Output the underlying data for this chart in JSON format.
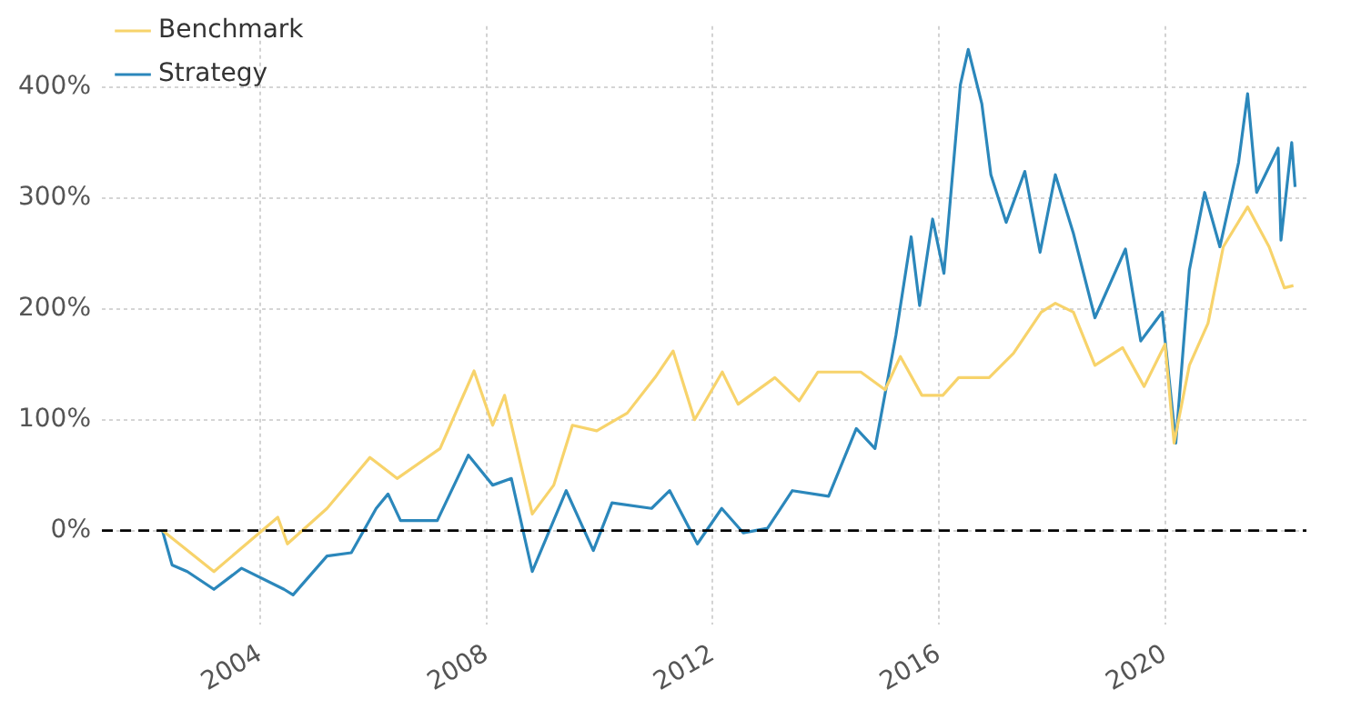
{
  "chart_data": {
    "type": "line",
    "xlim": [
      2001.2,
      2022.5
    ],
    "xticks": [
      2004,
      2008,
      2012,
      2016,
      2020
    ],
    "ylim": [
      -85,
      455
    ],
    "yticks": [
      {
        "value": 0,
        "label": "0%"
      },
      {
        "value": 100,
        "label": "100%"
      },
      {
        "value": 200,
        "label": "200%"
      },
      {
        "value": 300,
        "label": "300%"
      },
      {
        "value": 400,
        "label": "400%"
      }
    ],
    "grid": true,
    "legend": "top left",
    "marker": "none",
    "line_style": "solid",
    "ref_lines": [
      {
        "axis": "y",
        "value": 0,
        "color": "#000000",
        "line_style": "dashed"
      }
    ],
    "series": [
      {
        "name": "Benchmark",
        "color": "#f7d36b",
        "x": [
          2002.27,
          2003.18,
          2004.31,
          2004.48,
          2005.18,
          2005.94,
          2006.42,
          2007.18,
          2007.78,
          2008.11,
          2008.32,
          2008.81,
          2009.19,
          2009.52,
          2009.95,
          2010.49,
          2010.98,
          2011.3,
          2011.68,
          2012.17,
          2012.45,
          2013.1,
          2013.53,
          2013.86,
          2014.62,
          2015.05,
          2015.32,
          2015.7,
          2016.07,
          2016.35,
          2016.89,
          2017.32,
          2017.81,
          2018.06,
          2018.38,
          2018.76,
          2019.25,
          2019.63,
          2020.0,
          2020.16,
          2020.43,
          2020.76,
          2021.03,
          2021.46,
          2021.84,
          2022.11,
          2022.27
        ],
        "values": [
          0,
          -37,
          12,
          -12,
          20,
          66,
          47,
          74,
          144,
          95,
          122,
          15,
          41,
          95,
          90,
          106,
          138,
          162,
          100,
          143,
          114,
          138,
          117,
          143,
          143,
          127,
          157,
          122,
          122,
          138,
          138,
          160,
          197,
          205,
          197,
          149,
          165,
          130,
          168,
          79,
          149,
          187,
          256,
          292,
          256,
          219,
          221
        ]
      },
      {
        "name": "Strategy",
        "color": "#2b87bb",
        "x": [
          2002.27,
          2002.44,
          2002.71,
          2003.18,
          2003.67,
          2004.42,
          2004.58,
          2005.18,
          2005.61,
          2006.05,
          2006.26,
          2006.48,
          2007.13,
          2007.68,
          2008.11,
          2008.44,
          2008.81,
          2009.41,
          2009.89,
          2010.22,
          2010.92,
          2011.24,
          2011.73,
          2012.16,
          2012.54,
          2012.97,
          2013.41,
          2014.05,
          2014.54,
          2014.87,
          2015.24,
          2015.51,
          2015.66,
          2015.89,
          2016.09,
          2016.38,
          2016.52,
          2016.76,
          2016.92,
          2017.19,
          2017.52,
          2017.79,
          2018.06,
          2018.38,
          2018.76,
          2019.3,
          2019.57,
          2019.95,
          2020.19,
          2020.43,
          2020.7,
          2020.97,
          2021.3,
          2021.46,
          2021.62,
          2022.0,
          2022.05,
          2022.24,
          2022.3
        ],
        "values": [
          0,
          -31,
          -37,
          -53,
          -34,
          -53,
          -58,
          -23,
          -20,
          20,
          33,
          9,
          9,
          68,
          41,
          47,
          -37,
          36,
          -18,
          25,
          20,
          36,
          -12,
          20,
          -2,
          2,
          36,
          31,
          92,
          74,
          176,
          265,
          203,
          281,
          232,
          402,
          434,
          385,
          321,
          278,
          324,
          251,
          321,
          268,
          192,
          254,
          171,
          197,
          79,
          235,
          305,
          256,
          332,
          394,
          305,
          345,
          262,
          350,
          310
        ]
      }
    ]
  }
}
